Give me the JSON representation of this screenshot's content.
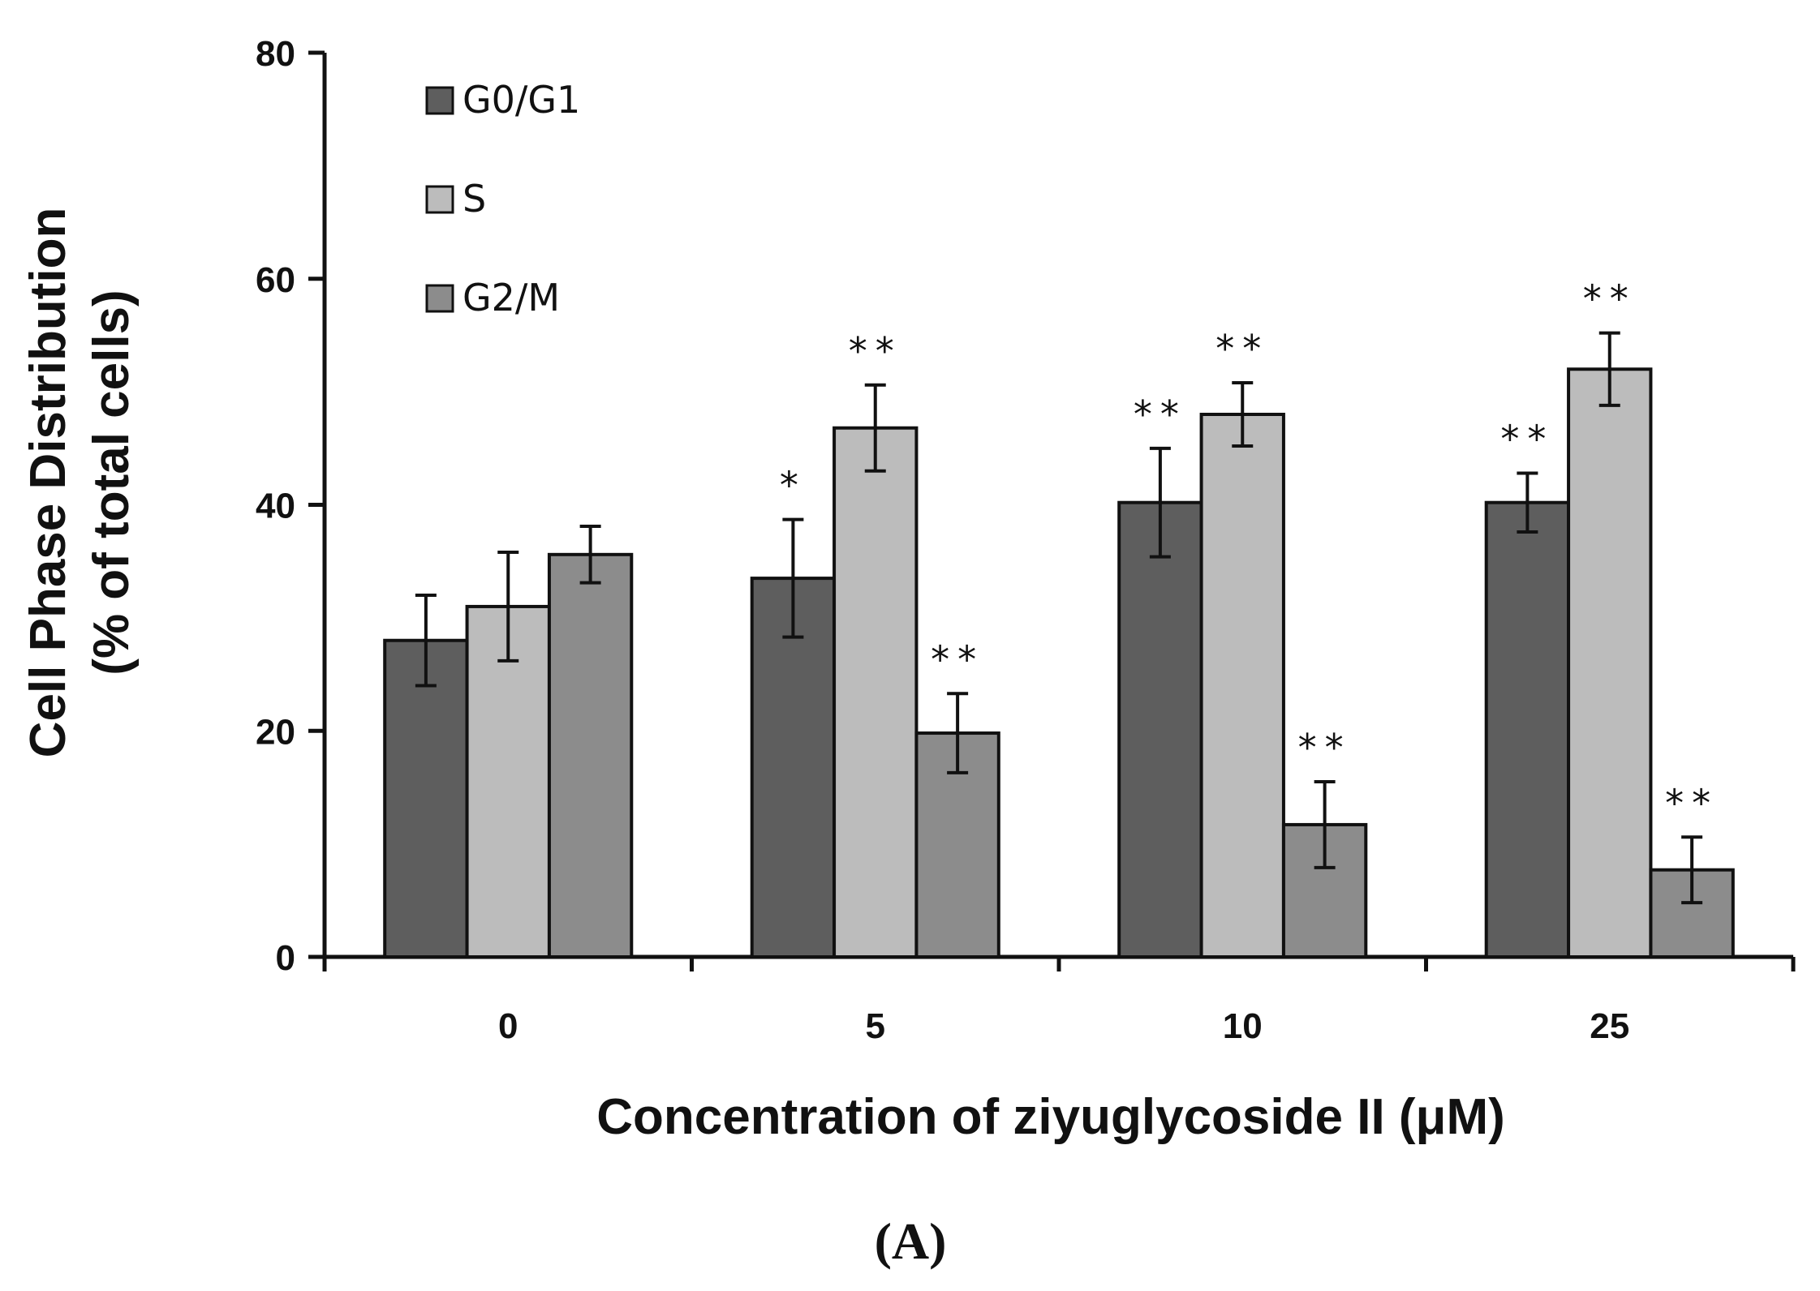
{
  "chart_data": {
    "type": "bar",
    "title": "",
    "xlabel": "Concentration of ziyuglycoside II (μM)",
    "ylabel_lines": [
      "Cell Phase Distribution",
      "(% of total cells)"
    ],
    "ylim": [
      0,
      80
    ],
    "yticks": [
      0,
      20,
      40,
      60,
      80
    ],
    "categories": [
      "0",
      "5",
      "10",
      "25"
    ],
    "legend_position": "top-left",
    "series": [
      {
        "name": "G0/G1",
        "color": "#5e5e5e",
        "values": [
          28,
          33.5,
          40.2,
          40.2
        ],
        "errors": [
          4,
          5.2,
          4.8,
          2.6
        ],
        "significance": [
          "",
          "*",
          "**",
          "**"
        ]
      },
      {
        "name": "S",
        "color": "#bcbcbc",
        "values": [
          31,
          46.8,
          48,
          52
        ],
        "errors": [
          4.8,
          3.8,
          2.8,
          3.2
        ],
        "significance": [
          "",
          "**",
          "**",
          "**"
        ]
      },
      {
        "name": "G2/M",
        "color": "#8c8c8c",
        "values": [
          35.6,
          19.8,
          11.7,
          7.7
        ],
        "errors": [
          2.5,
          3.5,
          3.8,
          2.9
        ],
        "significance": [
          "",
          "**",
          "**",
          "**"
        ]
      }
    ],
    "panel_label": "(A)"
  }
}
